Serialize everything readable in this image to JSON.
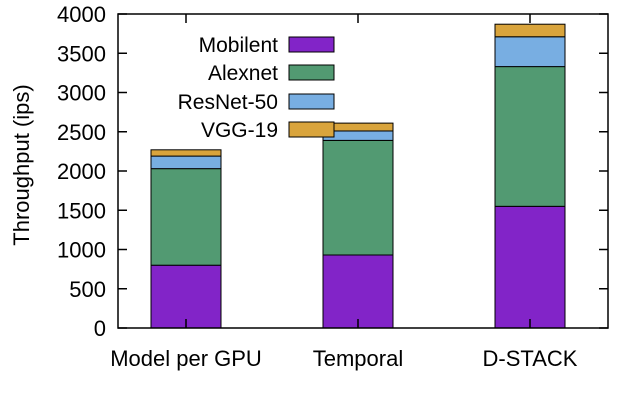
{
  "chart_data": {
    "type": "bar",
    "stacked": true,
    "categories": [
      "Model per GPU",
      "Temporal",
      "D-STACK"
    ],
    "series": [
      {
        "name": "Mobilent",
        "color": "#8224c8",
        "values": [
          800,
          930,
          1550
        ]
      },
      {
        "name": "Alexnet",
        "color": "#529a72",
        "values": [
          1230,
          1460,
          1780
        ]
      },
      {
        "name": "ResNet-50",
        "color": "#78aee2",
        "values": [
          160,
          120,
          380
        ]
      },
      {
        "name": "VGG-19",
        "color": "#d9a43c",
        "values": [
          80,
          100,
          160
        ]
      }
    ],
    "ylabel": "Throughput (ips)",
    "ylim": [
      0,
      4000
    ],
    "yticks": [
      0,
      500,
      1000,
      1500,
      2000,
      2500,
      3000,
      3500,
      4000
    ],
    "grid": false,
    "legend": "top-left"
  }
}
